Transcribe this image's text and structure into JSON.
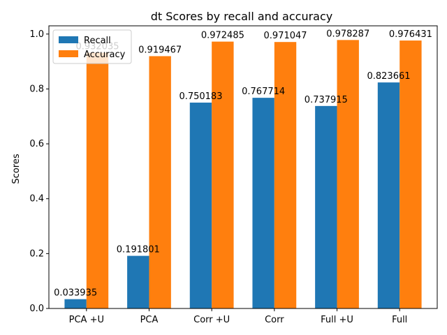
{
  "chart_data": {
    "type": "bar",
    "title": "dt Scores by recall and accuracy",
    "xlabel": "",
    "ylabel": "Scores",
    "categories": [
      "PCA +U",
      "PCA",
      "Corr +U",
      "Corr",
      "Full +U",
      "Full"
    ],
    "series": [
      {
        "name": "Recall",
        "color": "#1f77b4",
        "values": [
          0.033935,
          0.191801,
          0.750183,
          0.767714,
          0.737915,
          0.823661
        ],
        "labels": [
          "0.033935",
          "0.191801",
          "0.750183",
          "0.767714",
          "0.737915",
          "0.823661"
        ]
      },
      {
        "name": "Accuracy",
        "color": "#ff7f0e",
        "values": [
          0.932035,
          0.919467,
          0.972485,
          0.971047,
          0.978287,
          0.976431
        ],
        "labels": [
          "0.932035",
          "0.919467",
          "0.972485",
          "0.971047",
          "0.978287",
          "0.976431"
        ]
      }
    ],
    "ylim": [
      0,
      1.03
    ],
    "yticks": [
      "0.0",
      "0.2",
      "0.4",
      "0.6",
      "0.8",
      "1.0"
    ],
    "legend": "top-left",
    "grid": false
  }
}
